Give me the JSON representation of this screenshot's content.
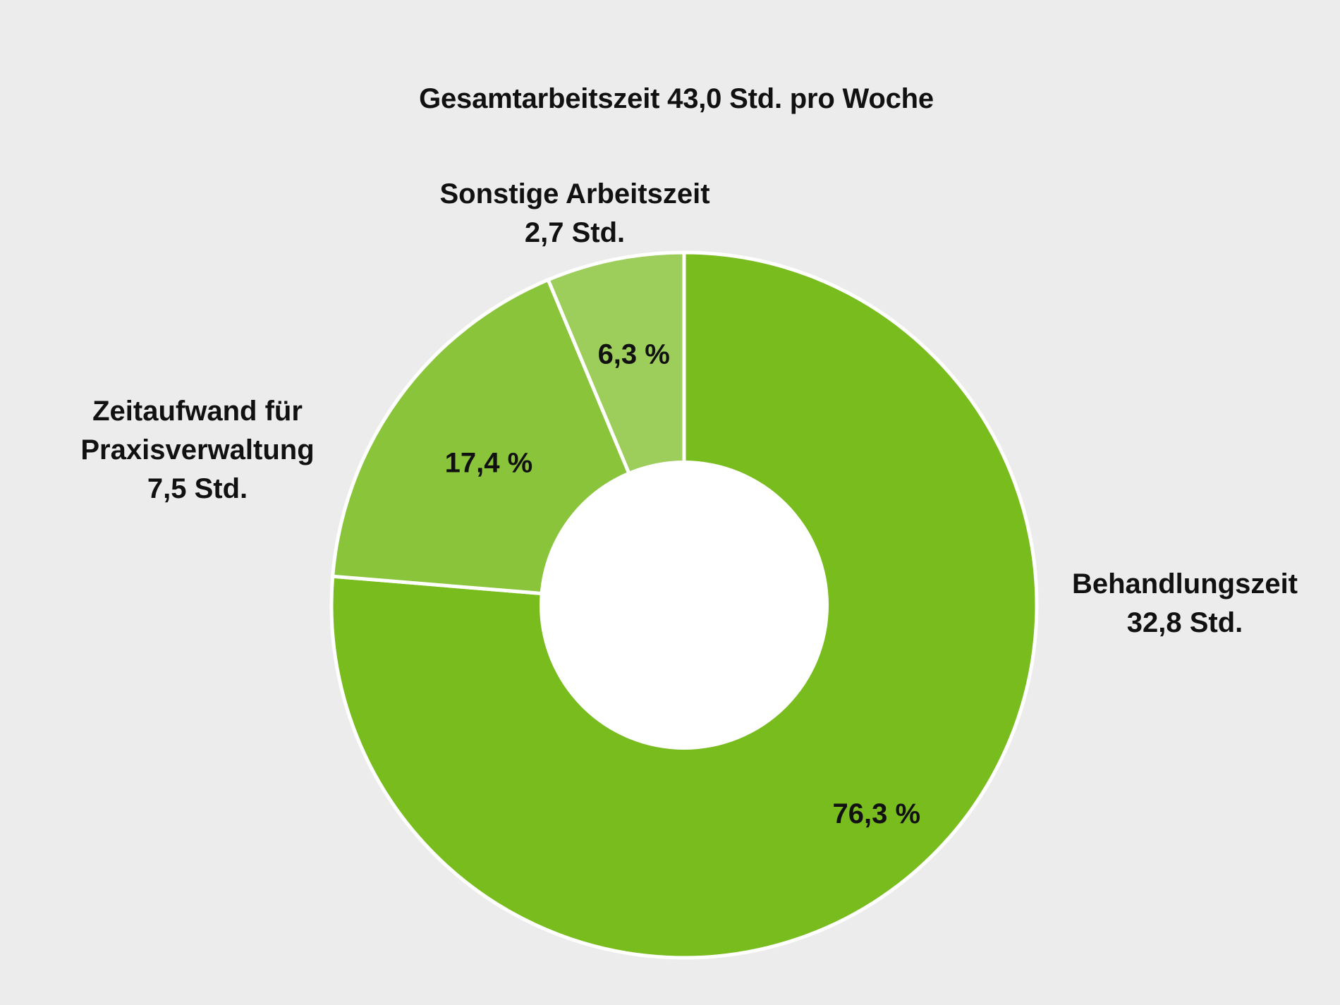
{
  "chart_data": {
    "type": "pie",
    "style": "donut",
    "title": "Gesamtarbeitszeit 43,0 Std. pro Woche",
    "slices": [
      {
        "label": "Behandlungszeit",
        "hours_label": "32,8 Std.",
        "percent": 76.3,
        "percent_label": "76,3 %",
        "color": "#78bc1e"
      },
      {
        "label_lines": [
          "Zeitaufwand für",
          "Praxisverwaltung"
        ],
        "hours_label": "7,5 Std.",
        "percent": 17.4,
        "percent_label": "17,4 %",
        "color": "#8ac43a"
      },
      {
        "label": "Sonstige Arbeitszeit",
        "hours_label": "2,7 Std.",
        "percent": 6.3,
        "percent_label": "6,3 %",
        "color": "#9dcd5a"
      }
    ],
    "start_angle": "12 o'clock",
    "direction": "clockwise",
    "separator_color": "#ffffff",
    "legend": "none"
  }
}
